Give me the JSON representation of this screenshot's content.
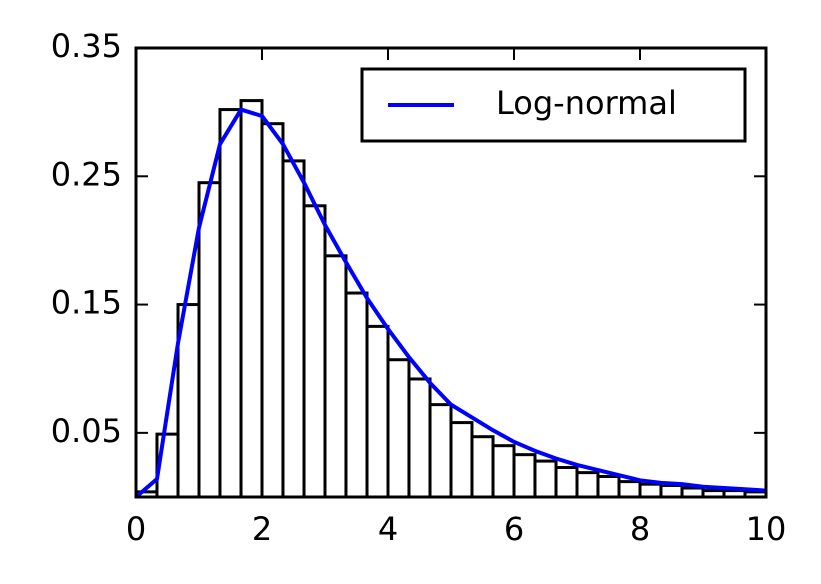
{
  "chart_data": {
    "type": "histogram",
    "bins": [
      0,
      0.333,
      0.667,
      1,
      1.333,
      1.667,
      2,
      2.333,
      2.667,
      3,
      3.333,
      3.667,
      4,
      4.333,
      4.667,
      5,
      5.333,
      5.667,
      6,
      6.333,
      6.667,
      7,
      7.333,
      7.667,
      8,
      8.333,
      8.667,
      9,
      9.333,
      9.667,
      10
    ],
    "values": [
      0.004,
      0.049,
      0.15,
      0.245,
      0.302,
      0.309,
      0.291,
      0.262,
      0.227,
      0.188,
      0.159,
      0.133,
      0.107,
      0.092,
      0.072,
      0.058,
      0.047,
      0.04,
      0.033,
      0.028,
      0.023,
      0.019,
      0.016,
      0.012,
      0.01,
      0.009,
      0.007,
      0.005,
      0.005,
      0.004
    ],
    "color": "#ffffff",
    "edgecolor": "#000000",
    "overlay": {
      "type": "line",
      "name": "Log-normal",
      "color": "#0000ff",
      "x": [
        0,
        0.333,
        0.667,
        1,
        1.333,
        1.667,
        2,
        2.333,
        2.667,
        3,
        3.333,
        3.667,
        4,
        4.333,
        4.667,
        5,
        5.333,
        5.667,
        6,
        6.333,
        6.667,
        7,
        7.333,
        7.667,
        8,
        8.333,
        8.667,
        9,
        9.333,
        9.667,
        10
      ],
      "values": [
        0,
        0.014,
        0.12,
        0.21,
        0.275,
        0.302,
        0.297,
        0.275,
        0.245,
        0.212,
        0.183,
        0.155,
        0.131,
        0.109,
        0.089,
        0.072,
        0.062,
        0.052,
        0.043,
        0.036,
        0.03,
        0.025,
        0.021,
        0.017,
        0.013,
        0.011,
        0.01,
        0.008,
        0.007,
        0.006,
        0.005
      ]
    },
    "xlim": [
      0,
      10
    ],
    "ylim": [
      0,
      0.35
    ],
    "xticks": [
      0,
      2,
      4,
      6,
      8,
      10
    ],
    "yticks": [
      0.05,
      0.15,
      0.25,
      0.35
    ],
    "legend": "upper right"
  }
}
